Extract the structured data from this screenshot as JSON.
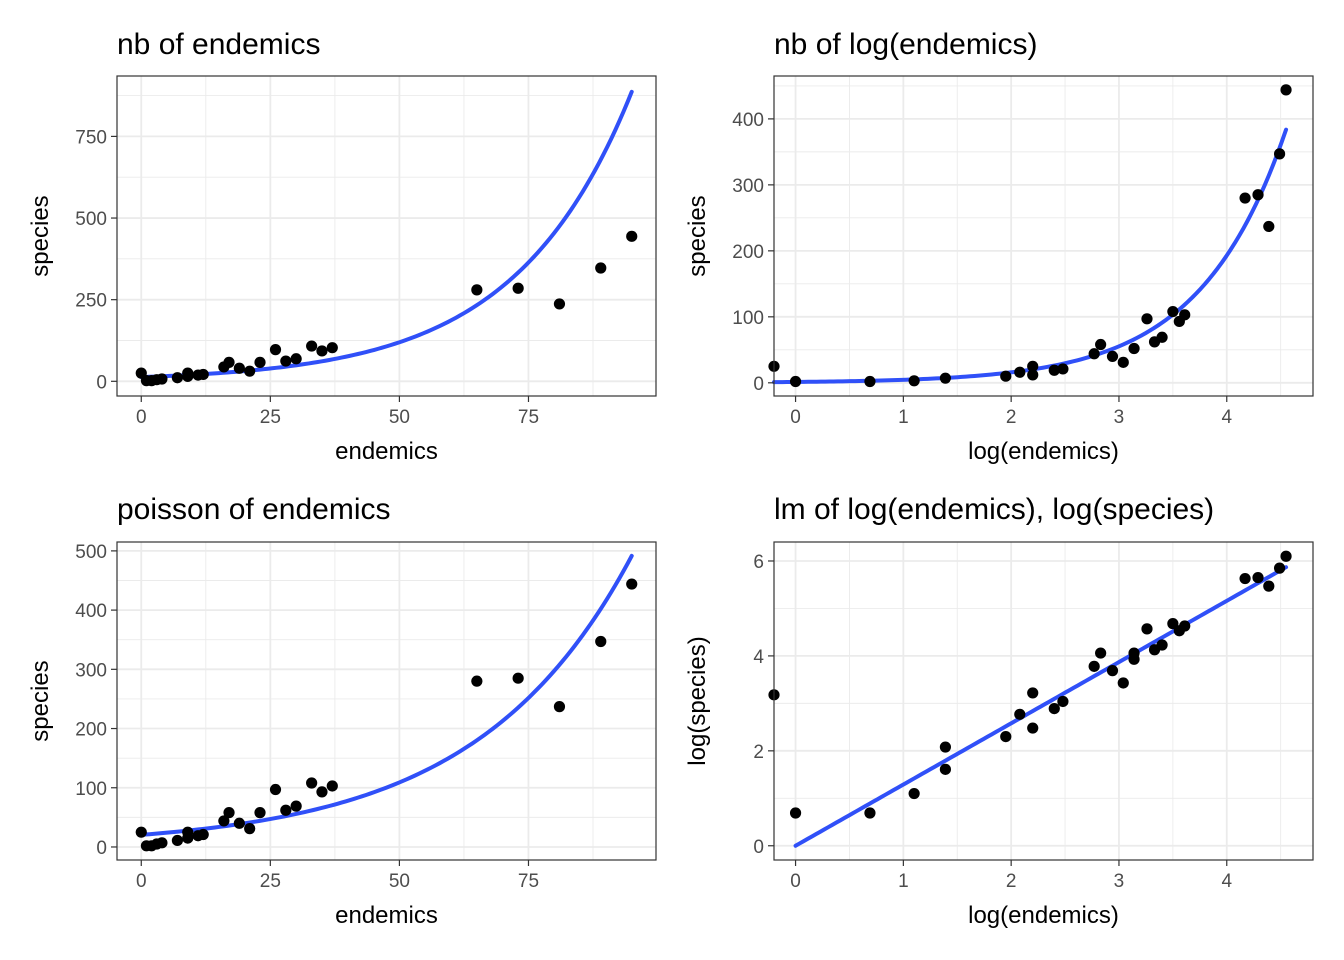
{
  "point_color": "#000000",
  "fit_color": "#3050f8",
  "chart_data": [
    {
      "type": "scatter",
      "title": "nb of endemics",
      "xlabel": "endemics",
      "ylabel": "species",
      "xlim": [
        -4.7,
        99.7
      ],
      "ylim": [
        -45,
        935
      ],
      "xticks": [
        0,
        25,
        50,
        75
      ],
      "xtick_labels": [
        "0",
        "25",
        "50",
        "75"
      ],
      "xminor": [
        12.5,
        37.5,
        62.5,
        87.5
      ],
      "yticks": [
        0,
        250,
        500,
        750
      ],
      "ytick_labels": [
        "0",
        "250",
        "500",
        "750"
      ],
      "yminor": [
        125,
        375,
        625,
        875
      ],
      "grid": true,
      "points": {
        "x": [
          0,
          1,
          2,
          3,
          4,
          7,
          9,
          9,
          11,
          12,
          16,
          17,
          19,
          21,
          23,
          26,
          28,
          30,
          33,
          35,
          37,
          65,
          73,
          81,
          89,
          95
        ],
        "y": [
          25,
          2,
          2,
          5,
          7,
          11,
          15,
          25,
          19,
          21,
          44,
          58,
          40,
          31,
          58,
          97,
          62,
          69,
          108,
          93,
          103,
          280,
          285,
          237,
          347,
          444
        ]
      },
      "fit": {
        "model": "exponential",
        "a": 12.91,
        "b": 0.04452,
        "x_range": [
          0,
          95
        ]
      }
    },
    {
      "type": "scatter",
      "title": "nb of log(endemics)",
      "xlabel": "log(endemics)",
      "ylabel": "species",
      "xlim": [
        -0.2,
        4.8
      ],
      "ylim": [
        -20,
        465
      ],
      "xticks": [
        0,
        1,
        2,
        3,
        4
      ],
      "xtick_labels": [
        "0",
        "1",
        "2",
        "3",
        "4"
      ],
      "xminor": [
        0.5,
        1.5,
        2.5,
        3.5,
        4.5
      ],
      "yticks": [
        0,
        100,
        200,
        300,
        400
      ],
      "ytick_labels": [
        "0",
        "100",
        "200",
        "300",
        "400"
      ],
      "yminor": [
        50,
        150,
        250,
        350,
        450
      ],
      "grid": true,
      "points": {
        "x": [
          -0.2,
          0,
          0.69,
          1.1,
          1.39,
          1.95,
          2.08,
          2.2,
          2.2,
          2.4,
          2.48,
          2.77,
          2.83,
          2.94,
          3.04,
          3.14,
          3.26,
          3.33,
          3.4,
          3.5,
          3.56,
          3.61,
          4.17,
          4.29,
          4.39,
          4.49,
          4.55
        ],
        "y": [
          25,
          2,
          2,
          3,
          7,
          10,
          16,
          12,
          25,
          19,
          21,
          44,
          58,
          40,
          31,
          52,
          97,
          62,
          69,
          108,
          93,
          103,
          280,
          285,
          237,
          347,
          444
        ]
      },
      "fit": {
        "model": "exponential",
        "a": 1.3,
        "b": 1.25,
        "x_range": [
          -0.2,
          4.55
        ]
      }
    },
    {
      "type": "scatter",
      "title": "poisson of endemics",
      "xlabel": "endemics",
      "ylabel": "species",
      "xlim": [
        -4.7,
        99.7
      ],
      "ylim": [
        -22,
        515
      ],
      "xticks": [
        0,
        25,
        50,
        75
      ],
      "xtick_labels": [
        "0",
        "25",
        "50",
        "75"
      ],
      "xminor": [
        12.5,
        37.5,
        62.5,
        87.5
      ],
      "yticks": [
        0,
        100,
        200,
        300,
        400,
        500
      ],
      "ytick_labels": [
        "0",
        "100",
        "200",
        "300",
        "400",
        "500"
      ],
      "yminor": [
        50,
        150,
        250,
        350,
        450
      ],
      "grid": true,
      "points": {
        "x": [
          0,
          1,
          2,
          3,
          4,
          7,
          9,
          9,
          11,
          12,
          16,
          17,
          19,
          21,
          23,
          26,
          28,
          30,
          33,
          35,
          37,
          65,
          73,
          81,
          89,
          95
        ],
        "y": [
          25,
          2,
          2,
          5,
          7,
          11,
          15,
          25,
          19,
          21,
          44,
          58,
          40,
          31,
          58,
          97,
          62,
          69,
          108,
          93,
          103,
          280,
          285,
          237,
          347,
          444
        ]
      },
      "fit": {
        "model": "exponential",
        "a": 20.45,
        "b": 0.03347,
        "x_range": [
          0,
          95
        ]
      }
    },
    {
      "type": "scatter",
      "title": "lm of log(endemics), log(species)",
      "xlabel": "log(endemics)",
      "ylabel": "log(species)",
      "xlim": [
        -0.2,
        4.8
      ],
      "ylim": [
        -0.3,
        6.4
      ],
      "xticks": [
        0,
        1,
        2,
        3,
        4
      ],
      "xtick_labels": [
        "0",
        "1",
        "2",
        "3",
        "4"
      ],
      "xminor": [
        0.5,
        1.5,
        2.5,
        3.5,
        4.5
      ],
      "yticks": [
        0,
        2,
        4,
        6
      ],
      "ytick_labels": [
        "0",
        "2",
        "4",
        "6"
      ],
      "yminor": [
        1,
        3,
        5
      ],
      "grid": true,
      "points": {
        "x": [
          -0.2,
          0,
          0.69,
          1.1,
          1.39,
          1.39,
          1.95,
          2.08,
          2.2,
          2.2,
          2.4,
          2.48,
          2.77,
          2.83,
          2.94,
          3.04,
          3.14,
          3.14,
          3.26,
          3.33,
          3.4,
          3.5,
          3.56,
          3.61,
          4.17,
          4.29,
          4.39,
          4.49,
          4.55
        ],
        "y": [
          3.18,
          0.69,
          0.69,
          1.1,
          1.61,
          2.08,
          2.3,
          2.77,
          2.48,
          3.22,
          2.89,
          3.04,
          3.78,
          4.06,
          3.69,
          3.43,
          3.93,
          4.06,
          4.57,
          4.13,
          4.23,
          4.68,
          4.53,
          4.63,
          5.63,
          5.65,
          5.47,
          5.85,
          6.1
        ]
      },
      "fit": {
        "model": "linear",
        "intercept": 0.0,
        "slope": 1.29,
        "x_range": [
          0,
          4.55
        ]
      }
    }
  ]
}
